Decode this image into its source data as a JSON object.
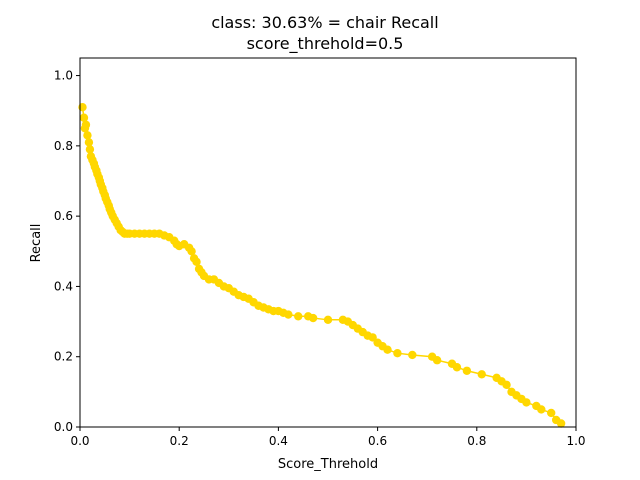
{
  "chart_data": {
    "type": "line",
    "title_line1": "class: 30.63% = chair Recall",
    "title_line2": "score_threhold=0.5",
    "xlabel": "Score_Threhold",
    "ylabel": "Recall",
    "xlim": [
      0,
      1.0
    ],
    "ylim": [
      0,
      1.05
    ],
    "x_ticks": [
      "0.0",
      "0.2",
      "0.4",
      "0.6",
      "0.8",
      "1.0"
    ],
    "y_ticks": [
      "0.0",
      "0.2",
      "0.4",
      "0.6",
      "0.8",
      "1.0"
    ],
    "grid": false,
    "legend": "none",
    "series": [
      {
        "color": "#FFD700",
        "marker": "circle",
        "x": [
          0.005,
          0.008,
          0.01,
          0.012,
          0.015,
          0.018,
          0.02,
          0.022,
          0.025,
          0.028,
          0.03,
          0.033,
          0.035,
          0.038,
          0.04,
          0.042,
          0.045,
          0.047,
          0.05,
          0.052,
          0.055,
          0.058,
          0.06,
          0.063,
          0.066,
          0.07,
          0.074,
          0.078,
          0.082,
          0.086,
          0.09,
          0.095,
          0.1,
          0.11,
          0.12,
          0.13,
          0.14,
          0.15,
          0.16,
          0.17,
          0.18,
          0.19,
          0.195,
          0.2,
          0.21,
          0.22,
          0.225,
          0.23,
          0.235,
          0.24,
          0.245,
          0.25,
          0.26,
          0.27,
          0.28,
          0.29,
          0.3,
          0.31,
          0.32,
          0.33,
          0.34,
          0.35,
          0.36,
          0.37,
          0.38,
          0.39,
          0.4,
          0.41,
          0.42,
          0.44,
          0.46,
          0.47,
          0.5,
          0.53,
          0.54,
          0.55,
          0.56,
          0.57,
          0.58,
          0.59,
          0.6,
          0.61,
          0.62,
          0.64,
          0.67,
          0.71,
          0.72,
          0.75,
          0.76,
          0.78,
          0.81,
          0.84,
          0.85,
          0.86,
          0.87,
          0.88,
          0.89,
          0.9,
          0.92,
          0.93,
          0.95,
          0.96,
          0.97
        ],
        "y": [
          0.91,
          0.88,
          0.85,
          0.86,
          0.83,
          0.81,
          0.79,
          0.77,
          0.76,
          0.75,
          0.74,
          0.73,
          0.72,
          0.71,
          0.7,
          0.69,
          0.68,
          0.67,
          0.66,
          0.65,
          0.64,
          0.63,
          0.62,
          0.61,
          0.6,
          0.59,
          0.58,
          0.57,
          0.56,
          0.555,
          0.55,
          0.55,
          0.55,
          0.55,
          0.55,
          0.55,
          0.55,
          0.55,
          0.55,
          0.545,
          0.54,
          0.53,
          0.52,
          0.515,
          0.52,
          0.51,
          0.5,
          0.48,
          0.47,
          0.45,
          0.44,
          0.43,
          0.42,
          0.42,
          0.41,
          0.4,
          0.395,
          0.385,
          0.375,
          0.37,
          0.365,
          0.355,
          0.345,
          0.34,
          0.335,
          0.33,
          0.33,
          0.325,
          0.32,
          0.315,
          0.315,
          0.31,
          0.305,
          0.305,
          0.3,
          0.29,
          0.28,
          0.27,
          0.26,
          0.255,
          0.24,
          0.23,
          0.22,
          0.21,
          0.205,
          0.2,
          0.19,
          0.18,
          0.17,
          0.16,
          0.15,
          0.14,
          0.13,
          0.12,
          0.1,
          0.09,
          0.08,
          0.07,
          0.06,
          0.05,
          0.04,
          0.02,
          0.01
        ]
      }
    ]
  }
}
